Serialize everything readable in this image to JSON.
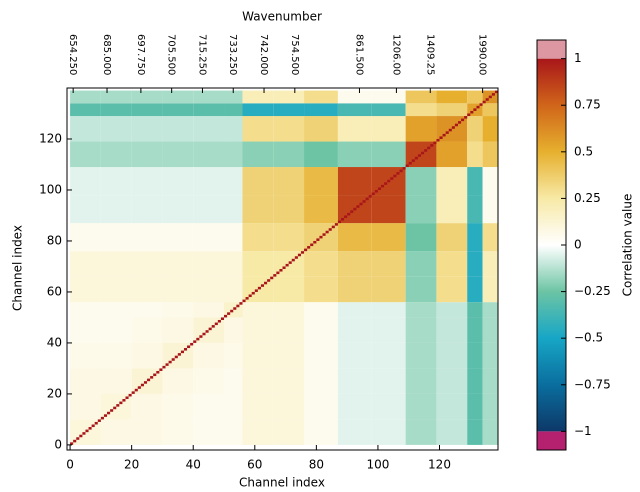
{
  "chart_data": {
    "type": "heatmap",
    "title": "Wavenumber",
    "xlabel": "Channel index",
    "ylabel": "Channel index",
    "colorbar_label": "Correlation value",
    "xlim": [
      -1,
      139
    ],
    "ylim": [
      -2,
      140
    ],
    "xticks": [
      0,
      20,
      40,
      60,
      80,
      100,
      120
    ],
    "yticks": [
      0,
      20,
      40,
      60,
      80,
      100,
      120
    ],
    "top_ticks": [
      {
        "value": 1,
        "label": "654.250"
      },
      {
        "value": 12,
        "label": "685.000"
      },
      {
        "value": 23,
        "label": "697.750"
      },
      {
        "value": 33,
        "label": "705.500"
      },
      {
        "value": 43,
        "label": "715.250"
      },
      {
        "value": 53,
        "label": "733.250"
      },
      {
        "value": 63,
        "label": "742.000"
      },
      {
        "value": 73,
        "label": "754.500"
      },
      {
        "value": 94,
        "label": "861.500"
      },
      {
        "value": 106,
        "label": "1206.00"
      },
      {
        "value": 117,
        "label": "1409.25"
      },
      {
        "value": 134,
        "label": "1990.00"
      }
    ],
    "bin_edges": [
      0,
      10,
      20,
      30,
      40,
      50,
      56,
      66,
      76,
      87,
      98,
      109,
      119,
      129,
      134,
      139
    ],
    "z": [
      [
        0.1,
        0.08,
        0.08,
        0.06,
        0.05,
        0.05,
        0.1,
        0.1,
        0.05,
        -0.05,
        -0.05,
        -0.15,
        -0.1,
        -0.3,
        -0.15
      ],
      [
        0.08,
        0.1,
        0.08,
        0.06,
        0.05,
        0.05,
        0.1,
        0.1,
        0.05,
        -0.05,
        -0.05,
        -0.15,
        -0.1,
        -0.3,
        -0.15
      ],
      [
        0.08,
        0.08,
        0.12,
        0.08,
        0.06,
        0.05,
        0.1,
        0.1,
        0.05,
        -0.05,
        -0.05,
        -0.15,
        -0.1,
        -0.3,
        -0.15
      ],
      [
        0.06,
        0.06,
        0.08,
        0.12,
        0.08,
        0.06,
        0.1,
        0.1,
        0.05,
        -0.05,
        -0.05,
        -0.15,
        -0.1,
        -0.3,
        -0.15
      ],
      [
        0.05,
        0.05,
        0.06,
        0.08,
        0.12,
        0.08,
        0.1,
        0.1,
        0.05,
        -0.05,
        -0.05,
        -0.15,
        -0.1,
        -0.3,
        -0.15
      ],
      [
        0.05,
        0.05,
        0.05,
        0.06,
        0.08,
        0.15,
        0.1,
        0.1,
        0.05,
        -0.05,
        -0.05,
        -0.15,
        -0.1,
        -0.3,
        -0.15
      ],
      [
        0.1,
        0.1,
        0.1,
        0.1,
        0.1,
        0.1,
        0.25,
        0.25,
        0.3,
        0.35,
        0.35,
        -0.2,
        0.3,
        -0.45,
        0.2
      ],
      [
        0.1,
        0.1,
        0.1,
        0.1,
        0.1,
        0.1,
        0.25,
        0.25,
        0.3,
        0.35,
        0.35,
        -0.2,
        0.3,
        -0.45,
        0.2
      ],
      [
        0.05,
        0.05,
        0.05,
        0.05,
        0.05,
        0.05,
        0.3,
        0.3,
        0.35,
        0.45,
        0.45,
        -0.25,
        0.35,
        -0.45,
        0.3
      ],
      [
        -0.05,
        -0.05,
        -0.05,
        -0.05,
        -0.05,
        -0.05,
        0.35,
        0.35,
        0.45,
        0.85,
        0.85,
        -0.2,
        0.2,
        -0.35,
        0.05
      ],
      [
        -0.05,
        -0.05,
        -0.05,
        -0.05,
        -0.05,
        -0.05,
        0.35,
        0.35,
        0.45,
        0.85,
        0.85,
        -0.2,
        0.2,
        -0.35,
        0.05
      ],
      [
        -0.15,
        -0.15,
        -0.15,
        -0.15,
        -0.15,
        -0.15,
        -0.2,
        -0.2,
        -0.25,
        -0.2,
        -0.2,
        0.85,
        0.55,
        0.3,
        0.4
      ],
      [
        -0.1,
        -0.1,
        -0.1,
        -0.1,
        -0.1,
        -0.1,
        0.3,
        0.3,
        0.35,
        0.2,
        0.2,
        0.55,
        0.6,
        0.35,
        0.5
      ],
      [
        -0.3,
        -0.3,
        -0.3,
        -0.3,
        -0.3,
        -0.3,
        -0.45,
        -0.45,
        -0.45,
        -0.35,
        -0.35,
        0.3,
        0.35,
        0.55,
        0.4
      ],
      [
        -0.15,
        -0.15,
        -0.15,
        -0.15,
        -0.15,
        -0.15,
        0.2,
        0.2,
        0.3,
        0.05,
        0.05,
        0.4,
        0.5,
        0.4,
        0.6
      ]
    ],
    "diagonal_value": 1,
    "colorbar_lim": [
      -1.1,
      1.1
    ],
    "colorbar_ticks": [
      {
        "value": -1,
        "label": "−1"
      },
      {
        "value": -0.75,
        "label": "−0.75"
      },
      {
        "value": -0.5,
        "label": "−0.5"
      },
      {
        "value": -0.25,
        "label": "−0.25"
      },
      0,
      0.25,
      0.5,
      0.75,
      1
    ],
    "colormap": [
      [
        -1,
        "#0d3868"
      ],
      [
        -0.75,
        "#0a6e9e"
      ],
      [
        -0.5,
        "#17a6c6"
      ],
      [
        -0.25,
        "#6cc4a4"
      ],
      [
        0,
        "#ffffff"
      ],
      [
        0.25,
        "#f7e9a6"
      ],
      [
        0.5,
        "#e6b02e"
      ],
      [
        0.75,
        "#d0651a"
      ],
      [
        1,
        "#a8161a"
      ]
    ],
    "under_color": "#b5206f",
    "over_color": "#dc97a2"
  }
}
